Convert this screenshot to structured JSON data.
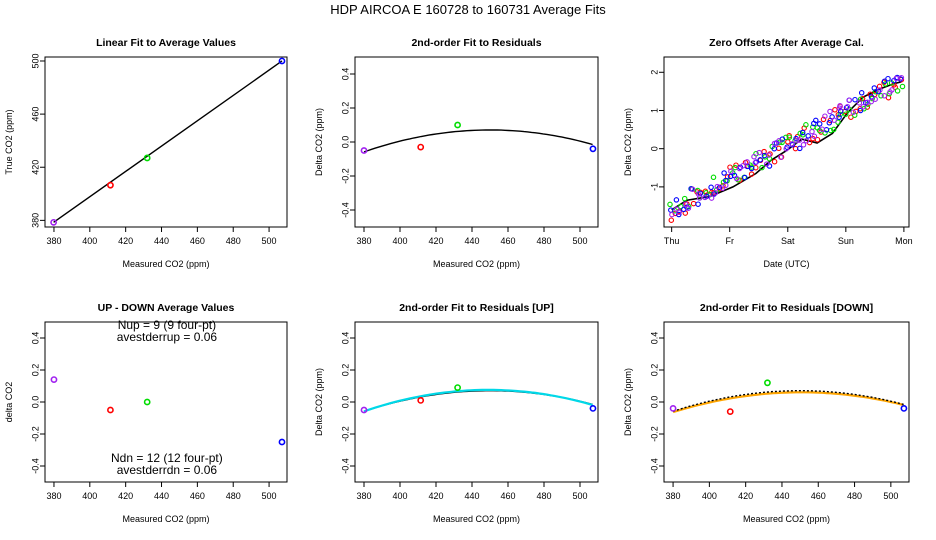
{
  "figure_title": "HDP   AIRCOA E   160728 to 160731   Average Fits",
  "colors": {
    "red": "#ff0000",
    "green": "#00dd00",
    "blue": "#0000ff",
    "purple": "#a020f0",
    "black": "#000000",
    "cyan": "#00d8e8",
    "orange": "#ffa500"
  },
  "chart_data": [
    {
      "id": "p1",
      "type": "scatter",
      "title": "Linear Fit to Average Values",
      "xlabel": "Measured CO2 (ppm)",
      "ylabel": "True CO2 (ppm)",
      "xlim": [
        375,
        510
      ],
      "ylim": [
        375,
        503
      ],
      "xticks": [
        380,
        400,
        420,
        440,
        460,
        480,
        500
      ],
      "yticks": [
        380,
        420,
        460,
        500
      ],
      "points": [
        {
          "x": 379.8,
          "y": 378.5,
          "color": "purple"
        },
        {
          "x": 411.5,
          "y": 406.5,
          "color": "red"
        },
        {
          "x": 432.0,
          "y": 427.0,
          "color": "green"
        },
        {
          "x": 507.2,
          "y": 500.0,
          "color": "blue"
        }
      ],
      "lines": [
        {
          "x": [
            379.8,
            507.2
          ],
          "y": [
            378.5,
            500.0
          ],
          "color": "black"
        }
      ]
    },
    {
      "id": "p2",
      "type": "scatter",
      "title": "2nd-order Fit to Residuals",
      "xlabel": "Measured CO2 (ppm)",
      "ylabel": "Delta CO2 (ppm)",
      "xlim": [
        375,
        510
      ],
      "ylim": [
        -0.5,
        0.5
      ],
      "xticks": [
        380,
        400,
        420,
        440,
        460,
        480,
        500
      ],
      "yticks": [
        -0.4,
        -0.2,
        0.0,
        0.2,
        0.4
      ],
      "yticklabels": [
        "-0.4",
        "-0.2",
        "0.0",
        "0.2",
        "0.4"
      ],
      "points": [
        {
          "x": 380,
          "y": -0.05,
          "color": "purple"
        },
        {
          "x": 411.5,
          "y": -0.03,
          "color": "red"
        },
        {
          "x": 432,
          "y": 0.1,
          "color": "green"
        },
        {
          "x": 507.2,
          "y": -0.04,
          "color": "blue"
        }
      ],
      "curves": [
        {
          "quad": {
            "a": -2.63e-05,
            "b": 0.02367,
            "c": -5.255
          },
          "from": 380,
          "to": 507,
          "color": "black"
        }
      ]
    },
    {
      "id": "p3",
      "type": "scatter",
      "title": "Zero Offsets After Average Cal.",
      "xlabel": "Date (UTC)",
      "ylabel": "Delta CO2 (ppm)",
      "xlim": [
        -0.1,
        3.1
      ],
      "ylim": [
        -2.05,
        2.4
      ],
      "xticks": [
        0,
        1,
        2,
        3,
        4
      ],
      "xticklabels": [
        "Thu",
        "Fr",
        "Sat",
        "Sun",
        "Mon"
      ],
      "xtickpos": [
        0,
        0.7583,
        1.5167,
        2.275,
        3.0333
      ],
      "yticks": [
        -1,
        0,
        1,
        2
      ],
      "points_generated": {
        "start_x": 0.0,
        "end_x": 3.0,
        "start_y": -1.6,
        "end_y": 1.75,
        "n": 55,
        "spread": 0.28,
        "series": [
          "red",
          "green",
          "blue",
          "purple"
        ]
      },
      "line": {
        "x": [
          0.0,
          0.2,
          0.5,
          0.8,
          1.1,
          1.3,
          1.5,
          1.7,
          1.9,
          2.1,
          2.3,
          2.5,
          2.7,
          2.9,
          3.0
        ],
        "y": [
          -1.6,
          -1.35,
          -1.25,
          -1.0,
          -0.65,
          -0.3,
          -0.05,
          0.25,
          0.15,
          0.4,
          0.95,
          1.35,
          1.55,
          1.7,
          1.75
        ],
        "color": "black"
      }
    },
    {
      "id": "p4",
      "type": "scatter",
      "title": "UP - DOWN Average Values",
      "xlabel": "Measured CO2 (ppm)",
      "ylabel": "delta CO2",
      "xlim": [
        375,
        510
      ],
      "ylim": [
        -0.5,
        0.5
      ],
      "xticks": [
        380,
        400,
        420,
        440,
        460,
        480,
        500
      ],
      "yticks": [
        -0.4,
        -0.2,
        0.0,
        0.2,
        0.4
      ],
      "yticklabels": [
        "-0.4",
        "-0.2",
        "0.0",
        "0.2",
        "0.4"
      ],
      "points": [
        {
          "x": 380,
          "y": 0.14,
          "color": "purple"
        },
        {
          "x": 411.5,
          "y": -0.05,
          "color": "red"
        },
        {
          "x": 432,
          "y": 0.0,
          "color": "green"
        },
        {
          "x": 507.2,
          "y": -0.25,
          "color": "blue"
        }
      ],
      "annotations": [
        {
          "text": "Nup = 9 (9 four-pt)",
          "x": 443,
          "y": 0.455
        },
        {
          "text": "avestderrup =  0.06",
          "x": 443,
          "y": 0.38
        },
        {
          "text": "Ndn = 12 (12 four-pt)",
          "x": 443,
          "y": -0.375
        },
        {
          "text": "avestderrdn =  0.06",
          "x": 443,
          "y": -0.45
        }
      ]
    },
    {
      "id": "p5",
      "type": "scatter",
      "title": "2nd-order Fit to Residuals [UP]",
      "xlabel": "Measured CO2 (ppm)",
      "ylabel": "Delta CO2 (ppm)",
      "xlim": [
        375,
        510
      ],
      "ylim": [
        -0.5,
        0.5
      ],
      "xticks": [
        380,
        400,
        420,
        440,
        460,
        480,
        500
      ],
      "yticks": [
        -0.4,
        -0.2,
        0.0,
        0.2,
        0.4
      ],
      "yticklabels": [
        "-0.4",
        "-0.2",
        "0.0",
        "0.2",
        "0.4"
      ],
      "points": [
        {
          "x": 380,
          "y": -0.05,
          "color": "purple"
        },
        {
          "x": 411.5,
          "y": 0.01,
          "color": "red"
        },
        {
          "x": 432,
          "y": 0.09,
          "color": "green"
        },
        {
          "x": 507.2,
          "y": -0.04,
          "color": "blue"
        }
      ],
      "curves": [
        {
          "quad": {
            "a": -2.63e-05,
            "b": 0.02367,
            "c": -5.255
          },
          "from": 380,
          "to": 507,
          "color": "black"
        },
        {
          "quad": {
            "a": -2.81e-05,
            "b": 0.02524,
            "c": -5.592
          },
          "from": 380,
          "to": 507,
          "color": "cyan",
          "width": 2.2
        }
      ]
    },
    {
      "id": "p6",
      "type": "scatter",
      "title": "2nd-order Fit to Residuals [DOWN]",
      "xlabel": "Measured CO2 (ppm)",
      "ylabel": "Delta CO2 (ppm)",
      "xlim": [
        375,
        510
      ],
      "ylim": [
        -0.5,
        0.5
      ],
      "xticks": [
        380,
        400,
        420,
        440,
        460,
        480,
        500
      ],
      "yticks": [
        -0.4,
        -0.2,
        0.0,
        0.2,
        0.4
      ],
      "yticklabels": [
        "-0.4",
        "-0.2",
        "0.0",
        "0.2",
        "0.4"
      ],
      "points": [
        {
          "x": 380,
          "y": -0.04,
          "color": "purple"
        },
        {
          "x": 411.5,
          "y": -0.06,
          "color": "red"
        },
        {
          "x": 432,
          "y": 0.12,
          "color": "green"
        },
        {
          "x": 507.2,
          "y": -0.04,
          "color": "blue"
        }
      ],
      "curves": [
        {
          "quad": {
            "a": -2.49e-05,
            "b": 0.02244,
            "c": -4.995
          },
          "from": 380,
          "to": 507,
          "color": "orange",
          "width": 2.2
        },
        {
          "quad": {
            "a": -2.63e-05,
            "b": 0.02367,
            "c": -5.255
          },
          "from": 380,
          "to": 507,
          "color": "black",
          "dash": true
        }
      ]
    }
  ]
}
